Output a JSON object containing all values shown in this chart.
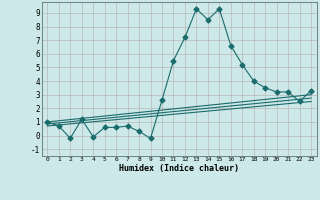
{
  "title": "",
  "xlabel": "Humidex (Indice chaleur)",
  "background_color": "#cce8e8",
  "line_color": "#1a6b6b",
  "grid_color": "#b8b8b8",
  "xlim": [
    -0.5,
    23.5
  ],
  "ylim": [
    -1.5,
    9.8
  ],
  "xticks": [
    0,
    1,
    2,
    3,
    4,
    5,
    6,
    7,
    8,
    9,
    10,
    11,
    12,
    13,
    14,
    15,
    16,
    17,
    18,
    19,
    20,
    21,
    22,
    23
  ],
  "yticks": [
    -1,
    0,
    1,
    2,
    3,
    4,
    5,
    6,
    7,
    8,
    9
  ],
  "main_x": [
    0,
    1,
    2,
    3,
    4,
    5,
    6,
    7,
    8,
    9,
    10,
    11,
    12,
    13,
    14,
    15,
    16,
    17,
    18,
    19,
    20,
    21,
    22,
    23
  ],
  "main_y": [
    1.0,
    0.7,
    -0.2,
    1.2,
    -0.1,
    0.6,
    0.6,
    0.7,
    0.3,
    -0.2,
    2.6,
    5.5,
    7.2,
    9.3,
    8.5,
    9.3,
    6.6,
    5.2,
    4.0,
    3.5,
    3.2,
    3.2,
    2.5,
    3.3
  ],
  "line1_x": [
    0,
    23
  ],
  "line1_y": [
    1.0,
    3.0
  ],
  "line2_x": [
    0,
    23
  ],
  "line2_y": [
    0.85,
    2.75
  ],
  "line3_x": [
    0,
    23
  ],
  "line3_y": [
    0.7,
    2.5
  ],
  "marker_size": 2.5,
  "line_width": 0.8
}
